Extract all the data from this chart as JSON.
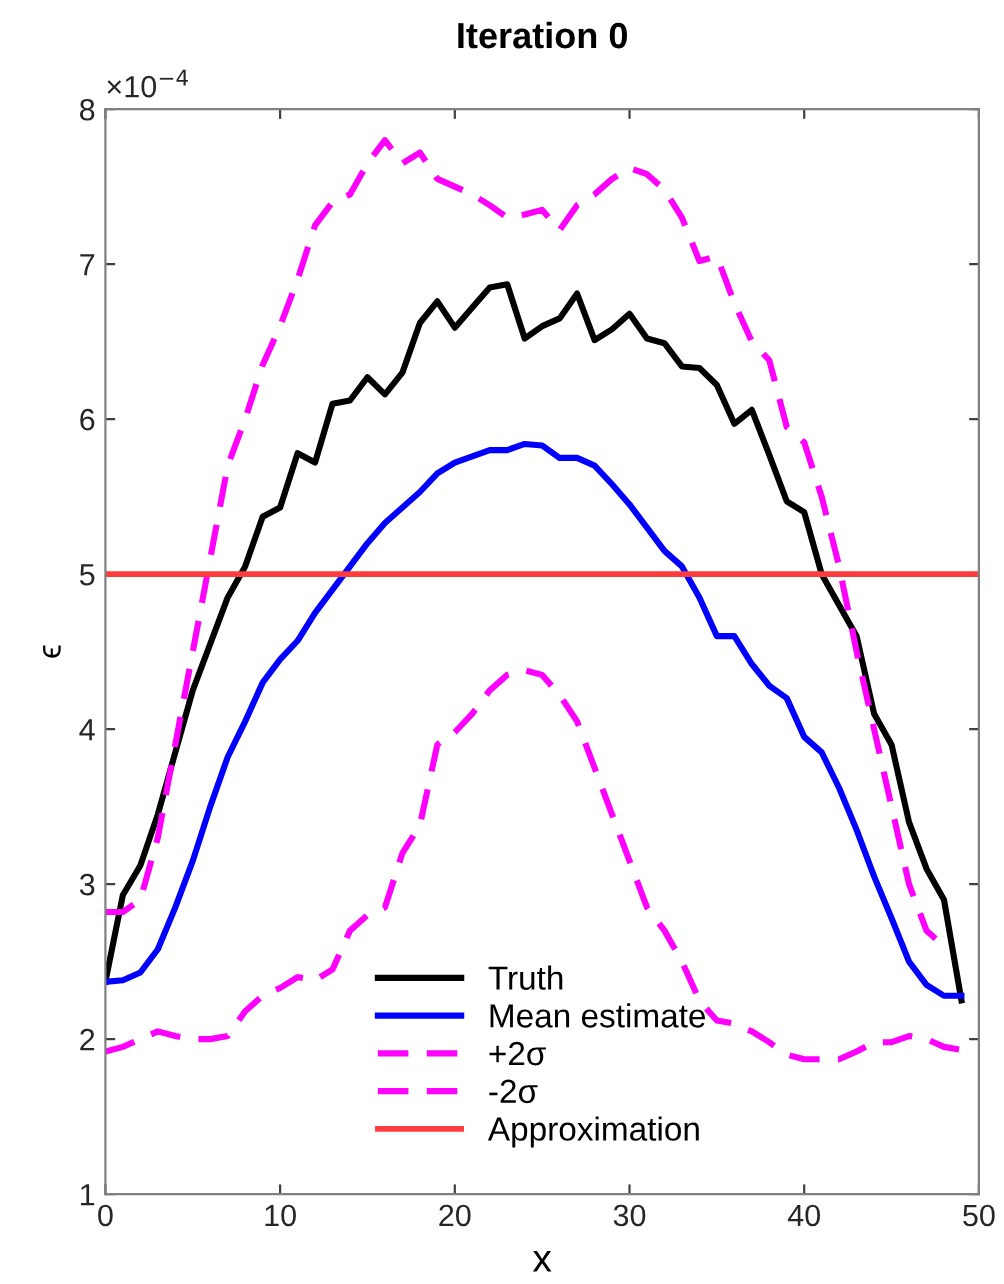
{
  "chart_data": {
    "type": "line",
    "title": "Iteration 0",
    "xlabel": "x",
    "ylabel": "ϵ",
    "annotations": [
      "×10$^{−4}$"
    ],
    "x": [
      0,
      1,
      2,
      3,
      4,
      5,
      6,
      7,
      8,
      9,
      10,
      11,
      12,
      13,
      14,
      15,
      16,
      17,
      18,
      19,
      20,
      21,
      22,
      23,
      24,
      25,
      26,
      27,
      28,
      29,
      30,
      31,
      32,
      33,
      34,
      35,
      36,
      37,
      38,
      39,
      40,
      41,
      42,
      43,
      44,
      45,
      46,
      47,
      48,
      49
    ],
    "series": [
      {
        "name": "Truth",
        "color": "#000000",
        "line_style": "solid",
        "values": [
          2.37,
          2.93,
          3.12,
          3.45,
          3.85,
          4.25,
          4.55,
          4.85,
          5.05,
          5.37,
          5.43,
          5.78,
          5.72,
          6.1,
          6.12,
          6.27,
          6.16,
          6.3,
          6.62,
          6.76,
          6.59,
          6.72,
          6.85,
          6.87,
          6.52,
          6.6,
          6.65,
          6.81,
          6.51,
          6.58,
          6.68,
          6.52,
          6.49,
          6.34,
          6.33,
          6.22,
          5.97,
          6.06,
          5.77,
          5.47,
          5.4,
          5.0,
          4.8,
          4.6,
          4.1,
          3.9,
          3.4,
          3.1,
          2.9,
          2.25
        ]
      },
      {
        "name": "Mean estimate",
        "color": "#0000ff",
        "line_style": "solid",
        "values": [
          2.37,
          2.38,
          2.43,
          2.58,
          2.85,
          3.15,
          3.5,
          3.82,
          4.05,
          4.3,
          4.45,
          4.57,
          4.75,
          4.9,
          5.05,
          5.2,
          5.33,
          5.43,
          5.53,
          5.65,
          5.72,
          5.76,
          5.8,
          5.8,
          5.84,
          5.83,
          5.75,
          5.75,
          5.7,
          5.58,
          5.45,
          5.3,
          5.15,
          5.05,
          4.85,
          4.6,
          4.6,
          4.42,
          4.28,
          4.2,
          3.95,
          3.85,
          3.62,
          3.35,
          3.05,
          2.78,
          2.5,
          2.35,
          2.28,
          2.28
        ]
      },
      {
        "name": "+2σ",
        "color": "#ff00ff",
        "line_style": "dashed",
        "x": [
          0,
          1,
          2,
          3,
          4,
          5,
          6,
          7,
          8,
          9,
          10,
          11,
          12,
          13,
          14,
          15,
          16,
          17,
          18,
          19,
          20,
          21,
          22,
          23,
          24,
          25,
          26,
          27,
          28,
          29,
          30,
          31,
          32,
          33,
          34,
          35,
          36,
          37,
          38,
          39,
          40,
          41,
          42,
          43,
          44,
          45,
          46,
          47,
          48
        ],
        "values": [
          2.82,
          2.82,
          2.9,
          3.3,
          3.9,
          4.5,
          5.1,
          5.7,
          6.0,
          6.35,
          6.6,
          6.9,
          7.25,
          7.4,
          7.45,
          7.65,
          7.8,
          7.65,
          7.72,
          7.55,
          7.5,
          7.45,
          7.38,
          7.3,
          7.32,
          7.35,
          7.22,
          7.38,
          7.45,
          7.55,
          7.62,
          7.58,
          7.48,
          7.3,
          7.02,
          7.05,
          6.75,
          6.5,
          6.38,
          5.95,
          5.85,
          5.5,
          5.05,
          4.5,
          4.0,
          3.5,
          3.0,
          2.7,
          2.6
        ]
      },
      {
        "name": "-2σ",
        "color": "#ff00ff",
        "line_style": "dashed",
        "values": [
          1.92,
          1.95,
          2.0,
          2.05,
          2.02,
          2.0,
          2.0,
          2.02,
          2.18,
          2.28,
          2.33,
          2.4,
          2.38,
          2.45,
          2.7,
          2.8,
          2.85,
          3.2,
          3.38,
          3.9,
          3.98,
          4.1,
          4.25,
          4.35,
          4.38,
          4.35,
          4.22,
          4.05,
          3.75,
          3.45,
          3.15,
          2.85,
          2.7,
          2.5,
          2.25,
          2.12,
          2.1,
          2.05,
          1.98,
          1.9,
          1.87,
          1.87,
          1.87,
          1.92,
          1.98,
          1.98,
          2.02,
          2.0,
          1.95,
          1.93
        ]
      }
    ],
    "ref_lines": [
      {
        "axis": "y",
        "value": 5,
        "label": "Approximation",
        "color": "#ff3b3b",
        "line_style": "solid"
      }
    ],
    "xlim": [
      0,
      50
    ],
    "xticks": [
      0,
      10,
      20,
      30,
      40,
      50
    ],
    "ylim": [
      1,
      8
    ],
    "yticks": [
      1,
      2,
      3,
      4,
      5,
      6,
      7,
      8
    ],
    "grid": false,
    "legend": "bottom",
    "marker": "none"
  }
}
